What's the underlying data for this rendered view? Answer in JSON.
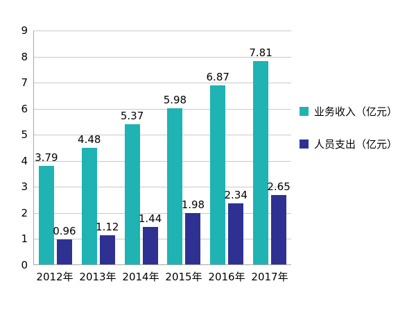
{
  "chart_data": {
    "type": "bar",
    "categories": [
      "2012年",
      "2013年",
      "2014年",
      "2015年",
      "2016年",
      "2017年"
    ],
    "series": [
      {
        "name": "业务收入（亿元）",
        "color": "#1fb3b3",
        "values": [
          3.79,
          4.48,
          5.37,
          5.98,
          6.87,
          7.81
        ]
      },
      {
        "name": "人员支出（亿元）",
        "color": "#2e3192",
        "values": [
          0.96,
          1.12,
          1.44,
          1.98,
          2.34,
          2.65
        ]
      }
    ],
    "title": "",
    "xlabel": "",
    "ylabel": "",
    "ylim": [
      0,
      9
    ],
    "ytick_step": 1,
    "grid": true,
    "legend_position": "right"
  },
  "colors": {
    "grid": "#c9c9c9",
    "axis": "#a6a6a6",
    "background": "#ffffff",
    "text": "#000000"
  }
}
